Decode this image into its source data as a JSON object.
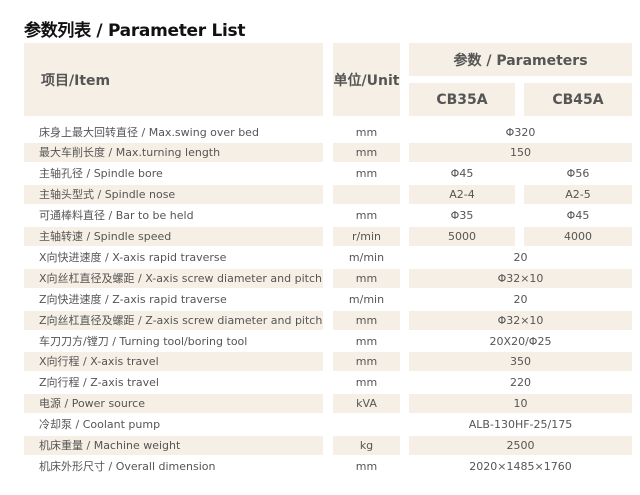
{
  "title": "参数列表 / Parameter List",
  "header": {
    "item": "项目/Item",
    "unit": "单位/Unit",
    "params": "参数 / Parameters",
    "models": [
      "CB35A",
      "CB45A"
    ]
  },
  "colors": {
    "header_bg": "#f6efe5",
    "stripe_bg": "#f6efe5",
    "text": "#555555"
  },
  "rows": [
    {
      "item": "床身上最大回转直径 / Max.swing over bed",
      "unit": "mm",
      "value": "Φ320"
    },
    {
      "item": "最大车削长度 / Max.turning length",
      "unit": "mm",
      "value": "150"
    },
    {
      "item": "主轴孔径 / Spindle bore",
      "unit": "mm",
      "a": "Φ45",
      "b": "Φ56"
    },
    {
      "item": "主轴头型式 / Spindle nose",
      "unit": "",
      "a": "A2-4",
      "b": "A2-5"
    },
    {
      "item": "可通棒料直径 / Bar to be held",
      "unit": "mm",
      "a": "Φ35",
      "b": "Φ45"
    },
    {
      "item": "主轴转速 / Spindle speed",
      "unit": "r/min",
      "a": "5000",
      "b": "4000"
    },
    {
      "item": "X向快进速度 / X-axis rapid traverse",
      "unit": "m/min",
      "value": "20"
    },
    {
      "item": "X向丝杠直径及螺距 / X-axis screw diameter and pitch",
      "unit": "mm",
      "value": "Φ32×10"
    },
    {
      "item": "Z向快进速度 / Z-axis rapid traverse",
      "unit": "m/min",
      "value": "20"
    },
    {
      "item": "Z向丝杠直径及螺距 / Z-axis screw diameter and pitch",
      "unit": "mm",
      "value": "Φ32×10"
    },
    {
      "item": "车刀刀方/镗刀 / Turning tool/boring tool",
      "unit": "mm",
      "value": "20X20/Φ25"
    },
    {
      "item": "X向行程 / X-axis travel",
      "unit": "mm",
      "value": "350"
    },
    {
      "item": "Z向行程 / Z-axis travel",
      "unit": "mm",
      "value": "220"
    },
    {
      "item": "电源 / Power source",
      "unit": "kVA",
      "value": "10"
    },
    {
      "item": "冷却泵 / Coolant pump",
      "unit": "",
      "value": "ALB-130HF-25/175"
    },
    {
      "item": "机床重量 / Machine weight",
      "unit": "kg",
      "value": "2500"
    },
    {
      "item": "机床外形尺寸 / Overall dimension",
      "unit": "mm",
      "value": "2020×1485×1760"
    }
  ]
}
